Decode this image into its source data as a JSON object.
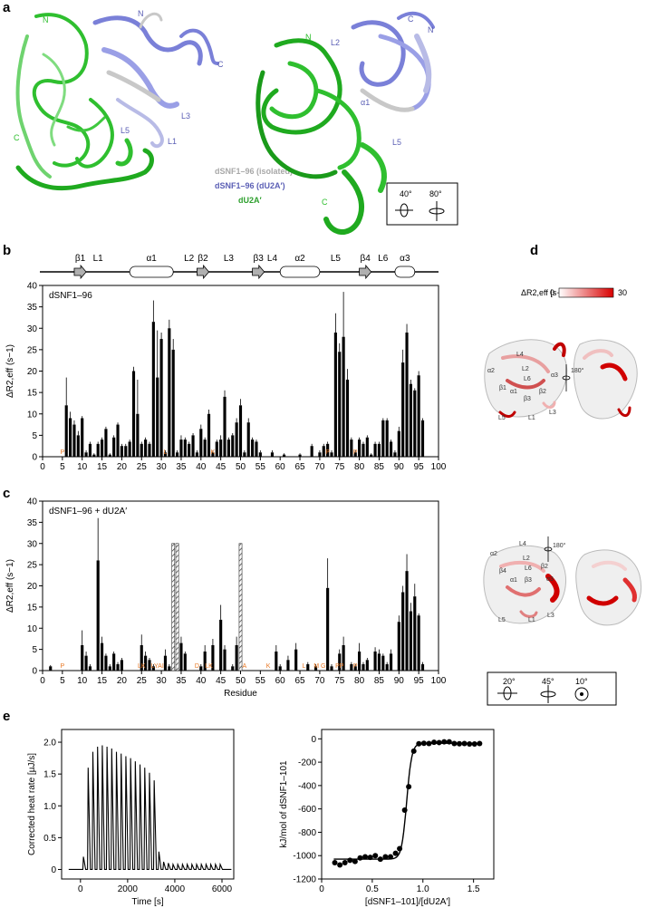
{
  "panel_labels": {
    "a": "a",
    "b": "b",
    "c": "c",
    "d": "d",
    "e": "e"
  },
  "panel_a": {
    "left_labels": {
      "n_green": "N",
      "n_blue": "N",
      "c_blue": "C",
      "c_green": "C",
      "l3": "L3",
      "l5": "L5",
      "l1": "L1"
    },
    "right_labels": {
      "n_green": "N",
      "l2": "L2",
      "c_blue": "C",
      "n_blue": "N",
      "alpha1": "α1",
      "l5": "L5",
      "c_green": "C"
    },
    "legend": [
      {
        "text": "dSNF1–96 (isolated)",
        "color": "#a8a8a8"
      },
      {
        "text": "dSNF1–96 (dU2A′)",
        "color": "#5b5fb5"
      },
      {
        "text": "dU2A′",
        "color": "#2fa02f"
      }
    ],
    "rotation": {
      "angle1": "40°",
      "angle2": "80°"
    },
    "colors": {
      "green": "#2fbf2f",
      "blue": "#7a80d8",
      "grey": "#c8c8c8"
    }
  },
  "secondary_structure": [
    {
      "label": "β1",
      "kind": "arrow"
    },
    {
      "label": "L1",
      "kind": "loop"
    },
    {
      "label": "α1",
      "kind": "helix"
    },
    {
      "label": "L2",
      "kind": "loop"
    },
    {
      "label": "β2",
      "kind": "arrow"
    },
    {
      "label": "L3",
      "kind": "loop"
    },
    {
      "label": "β3",
      "kind": "arrow"
    },
    {
      "label": "L4",
      "kind": "loop"
    },
    {
      "label": "α2",
      "kind": "helix"
    },
    {
      "label": "L5",
      "kind": "loop"
    },
    {
      "label": "β4",
      "kind": "arrow"
    },
    {
      "label": "L6",
      "kind": "loop"
    },
    {
      "label": "α3",
      "kind": "helix"
    }
  ],
  "panel_d": {
    "colorbar_label": "ΔR2,eff [s−1]",
    "colorbar_min": "0",
    "colorbar_max": "30",
    "top_rotation": "180°",
    "bottom_rotation": "180°",
    "top_labels": [
      "L4",
      "L2",
      "α2",
      "L6",
      "α3",
      "β2",
      "β1",
      "α1",
      "β3",
      "L3",
      "L5",
      "L1"
    ],
    "bottom_labels": [
      "L4",
      "α2",
      "L2",
      "L6",
      "β2",
      "β4",
      "β3",
      "α3",
      "α1",
      "L3",
      "L5",
      "L1"
    ],
    "rotation_box": [
      "20°",
      "45°",
      "10°"
    ]
  },
  "chart_data": [
    {
      "type": "bar",
      "panel": "b",
      "inset_label": "dSNF1–96",
      "xlabel": "",
      "ylabel": "ΔR2,eff (s−1)",
      "xlim": [
        0,
        100
      ],
      "ylim": [
        0,
        40
      ],
      "xticks": [
        0,
        5,
        10,
        15,
        20,
        25,
        30,
        35,
        40,
        45,
        50,
        55,
        60,
        65,
        70,
        75,
        80,
        85,
        90,
        95,
        100
      ],
      "yticks": [
        0,
        5,
        10,
        15,
        20,
        25,
        30,
        35,
        40
      ],
      "residue_markers": [
        {
          "text": "P",
          "x": 5
        },
        {
          "text": "L",
          "x": 31
        },
        {
          "text": "K",
          "x": 43
        },
        {
          "text": "P",
          "x": 72
        },
        {
          "text": "P",
          "x": 79
        }
      ],
      "bars": [
        {
          "x": 6,
          "y": 12,
          "err": 6.5
        },
        {
          "x": 7,
          "y": 9,
          "err": 1.5
        },
        {
          "x": 8,
          "y": 7.5,
          "err": 1
        },
        {
          "x": 9,
          "y": 5,
          "err": 1
        },
        {
          "x": 10,
          "y": 9,
          "err": 0.5
        },
        {
          "x": 11,
          "y": 1,
          "err": 0.5
        },
        {
          "x": 12,
          "y": 3,
          "err": 0.5
        },
        {
          "x": 13,
          "y": 0.5,
          "err": 0.3
        },
        {
          "x": 14,
          "y": 3,
          "err": 0.5
        },
        {
          "x": 15,
          "y": 4,
          "err": 0.5
        },
        {
          "x": 16,
          "y": 6.5,
          "err": 0.5
        },
        {
          "x": 17,
          "y": 0.5,
          "err": 0.3
        },
        {
          "x": 18,
          "y": 4.5,
          "err": 0.5
        },
        {
          "x": 19,
          "y": 7.5,
          "err": 0.5
        },
        {
          "x": 20,
          "y": 2.5,
          "err": 0.5
        },
        {
          "x": 21,
          "y": 2.5,
          "err": 0.5
        },
        {
          "x": 22,
          "y": 3.5,
          "err": 0.5
        },
        {
          "x": 23,
          "y": 20,
          "err": 1
        },
        {
          "x": 24,
          "y": 10,
          "err": 8
        },
        {
          "x": 25,
          "y": 3,
          "err": 0.5
        },
        {
          "x": 26,
          "y": 4,
          "err": 0.5
        },
        {
          "x": 27,
          "y": 3,
          "err": 0.5
        },
        {
          "x": 28,
          "y": 31.5,
          "err": 5
        },
        {
          "x": 29,
          "y": 18.5,
          "err": 11
        },
        {
          "x": 30,
          "y": 27.5,
          "err": 1.5
        },
        {
          "x": 31,
          "y": 1,
          "err": 0.5
        },
        {
          "x": 32,
          "y": 30,
          "err": 2
        },
        {
          "x": 33,
          "y": 25,
          "err": 2.5
        },
        {
          "x": 34,
          "y": 1,
          "err": 0.5
        },
        {
          "x": 35,
          "y": 4,
          "err": 1
        },
        {
          "x": 36,
          "y": 4,
          "err": 0.5
        },
        {
          "x": 37,
          "y": 3,
          "err": 0.5
        },
        {
          "x": 38,
          "y": 5,
          "err": 0.5
        },
        {
          "x": 39,
          "y": 1,
          "err": 0.5
        },
        {
          "x": 40,
          "y": 6.5,
          "err": 1
        },
        {
          "x": 41,
          "y": 4,
          "err": 0.5
        },
        {
          "x": 42,
          "y": 10,
          "err": 1
        },
        {
          "x": 43,
          "y": 1,
          "err": 0.5
        },
        {
          "x": 44,
          "y": 3.5,
          "err": 0.5
        },
        {
          "x": 45,
          "y": 4,
          "err": 1
        },
        {
          "x": 46,
          "y": 14,
          "err": 1.5
        },
        {
          "x": 47,
          "y": 4,
          "err": 0.5
        },
        {
          "x": 48,
          "y": 5,
          "err": 0.5
        },
        {
          "x": 49,
          "y": 8,
          "err": 1
        },
        {
          "x": 50,
          "y": 12,
          "err": 1.5
        },
        {
          "x": 51,
          "y": 1,
          "err": 0.5
        },
        {
          "x": 52,
          "y": 8,
          "err": 1
        },
        {
          "x": 53,
          "y": 4,
          "err": 0.5
        },
        {
          "x": 54,
          "y": 3.5,
          "err": 0.5
        },
        {
          "x": 55,
          "y": 1,
          "err": 0.5
        },
        {
          "x": 58,
          "y": 1,
          "err": 0.5
        },
        {
          "x": 61,
          "y": 0.5,
          "err": 0.3
        },
        {
          "x": 65,
          "y": 0.5,
          "err": 0.3
        },
        {
          "x": 68,
          "y": 2.5,
          "err": 0.5
        },
        {
          "x": 70,
          "y": 1,
          "err": 0.5
        },
        {
          "x": 71,
          "y": 2.5,
          "err": 0.5
        },
        {
          "x": 72,
          "y": 3,
          "err": 0.5
        },
        {
          "x": 73,
          "y": 1,
          "err": 0.5
        },
        {
          "x": 74,
          "y": 29,
          "err": 4.5
        },
        {
          "x": 75,
          "y": 24.5,
          "err": 2
        },
        {
          "x": 76,
          "y": 28,
          "err": 10.5
        },
        {
          "x": 77,
          "y": 18,
          "err": 2.5
        },
        {
          "x": 78,
          "y": 4,
          "err": 0.5
        },
        {
          "x": 79,
          "y": 1,
          "err": 0.5
        },
        {
          "x": 80,
          "y": 4,
          "err": 0.5
        },
        {
          "x": 81,
          "y": 3,
          "err": 0.5
        },
        {
          "x": 82,
          "y": 4.5,
          "err": 0.5
        },
        {
          "x": 83,
          "y": 0.5,
          "err": 0.3
        },
        {
          "x": 84,
          "y": 3,
          "err": 0.5
        },
        {
          "x": 85,
          "y": 3,
          "err": 0.5
        },
        {
          "x": 86,
          "y": 8.5,
          "err": 0.5
        },
        {
          "x": 87,
          "y": 8.5,
          "err": 0.5
        },
        {
          "x": 88,
          "y": 3.5,
          "err": 0.5
        },
        {
          "x": 89,
          "y": 1,
          "err": 0.5
        },
        {
          "x": 90,
          "y": 6,
          "err": 1
        },
        {
          "x": 91,
          "y": 22,
          "err": 3
        },
        {
          "x": 92,
          "y": 29,
          "err": 2
        },
        {
          "x": 93,
          "y": 17,
          "err": 1
        },
        {
          "x": 94,
          "y": 15.5,
          "err": 0.5
        },
        {
          "x": 95,
          "y": 19,
          "err": 1
        },
        {
          "x": 96,
          "y": 8.5,
          "err": 0.5
        }
      ]
    },
    {
      "type": "bar",
      "panel": "c",
      "inset_label": "dSNF1–96 + dU2A′",
      "xlabel": "Residue",
      "ylabel": "ΔR2,eff (s−1)",
      "xlim": [
        0,
        100
      ],
      "ylim": [
        0,
        40
      ],
      "xticks": [
        0,
        5,
        10,
        15,
        20,
        25,
        30,
        35,
        40,
        45,
        50,
        55,
        60,
        65,
        70,
        75,
        80,
        85,
        90,
        95,
        100
      ],
      "yticks": [
        0,
        5,
        10,
        15,
        20,
        25,
        30,
        35,
        40
      ],
      "hatched": [
        {
          "x": 33,
          "y": 30
        },
        {
          "x": 34,
          "y": 30
        },
        {
          "x": 50,
          "y": 30
        }
      ],
      "residue_markers": [
        {
          "text": "P",
          "x": 5
        },
        {
          "text": "LK",
          "x": 25
        },
        {
          "text": "LYAI",
          "x": 29
        },
        {
          "text": "D",
          "x": 39
        },
        {
          "text": "LK",
          "x": 42
        },
        {
          "text": "A",
          "x": 51
        },
        {
          "text": "K",
          "x": 57
        },
        {
          "text": "L",
          "x": 66
        },
        {
          "text": "M G",
          "x": 70
        },
        {
          "text": "PP",
          "x": 75
        },
        {
          "text": "P",
          "x": 79
        }
      ],
      "bars": [
        {
          "x": 2,
          "y": 1,
          "err": 0.3
        },
        {
          "x": 10,
          "y": 6,
          "err": 3.5
        },
        {
          "x": 11,
          "y": 3.5,
          "err": 1
        },
        {
          "x": 12,
          "y": 1,
          "err": 0.5
        },
        {
          "x": 14,
          "y": 26,
          "err": 10
        },
        {
          "x": 15,
          "y": 6.5,
          "err": 1.5
        },
        {
          "x": 16,
          "y": 3.5,
          "err": 0.5
        },
        {
          "x": 17,
          "y": 1,
          "err": 0.5
        },
        {
          "x": 18,
          "y": 4,
          "err": 0.5
        },
        {
          "x": 19,
          "y": 1.5,
          "err": 0.5
        },
        {
          "x": 20,
          "y": 2.5,
          "err": 0.5
        },
        {
          "x": 25,
          "y": 6,
          "err": 2.5
        },
        {
          "x": 26,
          "y": 3.5,
          "err": 1
        },
        {
          "x": 27,
          "y": 2.5,
          "err": 0.5
        },
        {
          "x": 28,
          "y": 1,
          "err": 0.5
        },
        {
          "x": 31,
          "y": 3.5,
          "err": 1.5
        },
        {
          "x": 32,
          "y": 1,
          "err": 0.5
        },
        {
          "x": 35,
          "y": 6.5,
          "err": 1.5
        },
        {
          "x": 36,
          "y": 4,
          "err": 0.5
        },
        {
          "x": 40,
          "y": 1,
          "err": 0.5
        },
        {
          "x": 41,
          "y": 4.5,
          "err": 1.5
        },
        {
          "x": 43,
          "y": 6,
          "err": 1.5
        },
        {
          "x": 45,
          "y": 12,
          "err": 3.5
        },
        {
          "x": 46,
          "y": 5,
          "err": 1
        },
        {
          "x": 48,
          "y": 1,
          "err": 0.5
        },
        {
          "x": 49,
          "y": 6,
          "err": 2
        },
        {
          "x": 59,
          "y": 4.5,
          "err": 1.5
        },
        {
          "x": 60,
          "y": 1,
          "err": 0.5
        },
        {
          "x": 62,
          "y": 2.5,
          "err": 1
        },
        {
          "x": 64,
          "y": 5,
          "err": 1.5
        },
        {
          "x": 67,
          "y": 1.5,
          "err": 0.5
        },
        {
          "x": 69,
          "y": 1,
          "err": 0.5
        },
        {
          "x": 72,
          "y": 19.5,
          "err": 7
        },
        {
          "x": 73,
          "y": 1,
          "err": 0.5
        },
        {
          "x": 75,
          "y": 4,
          "err": 1
        },
        {
          "x": 76,
          "y": 6,
          "err": 2
        },
        {
          "x": 78,
          "y": 1.5,
          "err": 0.5
        },
        {
          "x": 79,
          "y": 1,
          "err": 0.5
        },
        {
          "x": 80,
          "y": 4.5,
          "err": 2
        },
        {
          "x": 81,
          "y": 1.5,
          "err": 0.5
        },
        {
          "x": 82,
          "y": 2.5,
          "err": 0.5
        },
        {
          "x": 84,
          "y": 4.5,
          "err": 1
        },
        {
          "x": 85,
          "y": 4,
          "err": 1
        },
        {
          "x": 86,
          "y": 3.5,
          "err": 0.5
        },
        {
          "x": 87,
          "y": 1.5,
          "err": 0.5
        },
        {
          "x": 88,
          "y": 4,
          "err": 1
        },
        {
          "x": 90,
          "y": 11.5,
          "err": 1.5
        },
        {
          "x": 91,
          "y": 18.5,
          "err": 1.5
        },
        {
          "x": 92,
          "y": 23.5,
          "err": 4
        },
        {
          "x": 93,
          "y": 14,
          "err": 2
        },
        {
          "x": 94,
          "y": 17.5,
          "err": 3
        },
        {
          "x": 95,
          "y": 13,
          "err": 0.5
        },
        {
          "x": 96,
          "y": 1.5,
          "err": 0.5
        }
      ]
    },
    {
      "type": "line",
      "panel": "e-left",
      "xlabel": "Time [s]",
      "ylabel": "Corrected heat rate [µJ/s]",
      "xlim": [
        -800,
        6500
      ],
      "ylim": [
        -0.15,
        2.2
      ],
      "xticks": [
        0,
        2000,
        4000,
        6000
      ],
      "yticks": [
        0,
        0.5,
        1.0,
        1.5,
        2.0
      ],
      "ytick_labels": [
        "0",
        "0.5",
        "1.0",
        "1.5",
        "2.0"
      ],
      "injection_interval": 200,
      "first_injection": 100,
      "peaks": [
        0.2,
        1.6,
        1.85,
        1.93,
        1.95,
        1.93,
        1.9,
        1.85,
        1.82,
        1.78,
        1.75,
        1.7,
        1.65,
        1.6,
        1.52,
        1.4,
        0.28,
        0.12,
        0.1,
        0.08,
        0.08,
        0.08,
        0.08,
        0.08,
        0.08,
        0.08,
        0.08,
        0.08,
        0.08,
        0.08
      ]
    },
    {
      "type": "scatter",
      "panel": "e-right",
      "xlabel": "[dSNF1–101]/[dU2A′]",
      "ylabel": "kJ/mol of dSNF1–101",
      "xlim": [
        0,
        1.7
      ],
      "ylim": [
        -1200,
        80
      ],
      "xticks": [
        0,
        0.5,
        1.0,
        1.5
      ],
      "xtick_labels": [
        "0",
        "0.5",
        "1.0",
        "1.5"
      ],
      "yticks": [
        0,
        -200,
        -400,
        -600,
        -800,
        -1000,
        -1200
      ],
      "points": [
        {
          "x": 0.13,
          "y": -1060
        },
        {
          "x": 0.18,
          "y": -1080
        },
        {
          "x": 0.23,
          "y": -1060
        },
        {
          "x": 0.28,
          "y": -1040
        },
        {
          "x": 0.33,
          "y": -1050
        },
        {
          "x": 0.38,
          "y": -1020
        },
        {
          "x": 0.43,
          "y": -1010
        },
        {
          "x": 0.48,
          "y": -1015
        },
        {
          "x": 0.53,
          "y": -1000
        },
        {
          "x": 0.58,
          "y": -1030
        },
        {
          "x": 0.63,
          "y": -1010
        },
        {
          "x": 0.68,
          "y": -1010
        },
        {
          "x": 0.73,
          "y": -980
        },
        {
          "x": 0.77,
          "y": -940
        },
        {
          "x": 0.82,
          "y": -610
        },
        {
          "x": 0.86,
          "y": -410
        },
        {
          "x": 0.91,
          "y": -105
        },
        {
          "x": 0.96,
          "y": -42
        },
        {
          "x": 1.01,
          "y": -38
        },
        {
          "x": 1.06,
          "y": -40
        },
        {
          "x": 1.11,
          "y": -30
        },
        {
          "x": 1.16,
          "y": -32
        },
        {
          "x": 1.21,
          "y": -26
        },
        {
          "x": 1.26,
          "y": -26
        },
        {
          "x": 1.31,
          "y": -40
        },
        {
          "x": 1.36,
          "y": -42
        },
        {
          "x": 1.41,
          "y": -40
        },
        {
          "x": 1.46,
          "y": -44
        },
        {
          "x": 1.51,
          "y": -44
        },
        {
          "x": 1.56,
          "y": -40
        }
      ],
      "fit": {
        "n": 0.84,
        "dh_low": -1030,
        "dh_high": -38,
        "width": 0.025
      }
    }
  ]
}
